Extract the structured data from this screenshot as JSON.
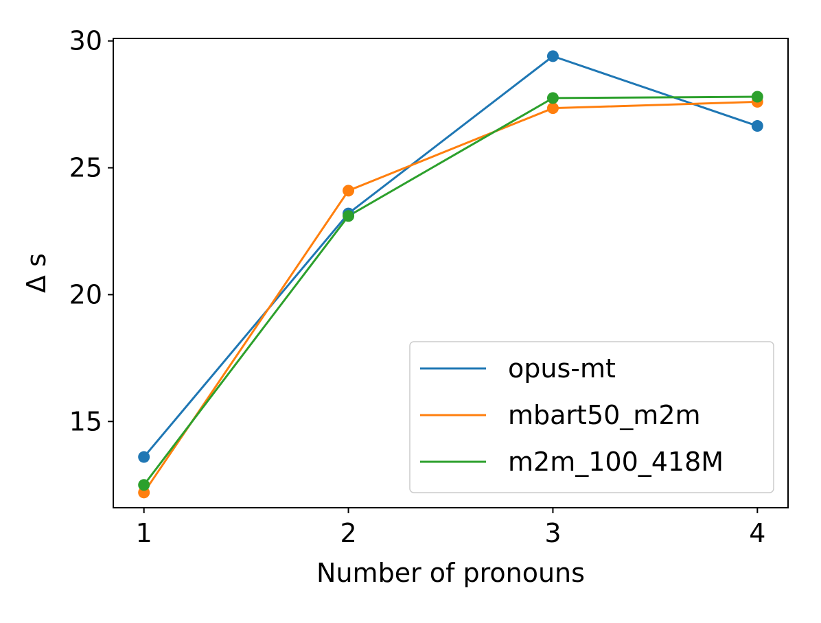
{
  "chart_data": {
    "type": "line",
    "title": "",
    "xlabel": "Number of pronouns",
    "ylabel": "Δ s",
    "x": [
      1,
      2,
      3,
      4
    ],
    "x_ticks": [
      "1",
      "2",
      "3",
      "4"
    ],
    "y_ticks": [
      "15",
      "20",
      "25",
      "30"
    ],
    "xlim": [
      0.85,
      4.15
    ],
    "ylim": [
      11.6,
      30.1
    ],
    "grid": false,
    "legend_position": "lower right",
    "series": [
      {
        "name": "opus-mt",
        "color": "#1f77b4",
        "values": [
          13.6,
          23.2,
          29.4,
          26.65
        ]
      },
      {
        "name": "mbart50_m2m",
        "color": "#ff7f0e",
        "values": [
          12.2,
          24.1,
          27.35,
          27.6
        ]
      },
      {
        "name": "m2m_100_418M",
        "color": "#2ca02c",
        "values": [
          12.5,
          23.1,
          27.75,
          27.8
        ]
      }
    ]
  }
}
